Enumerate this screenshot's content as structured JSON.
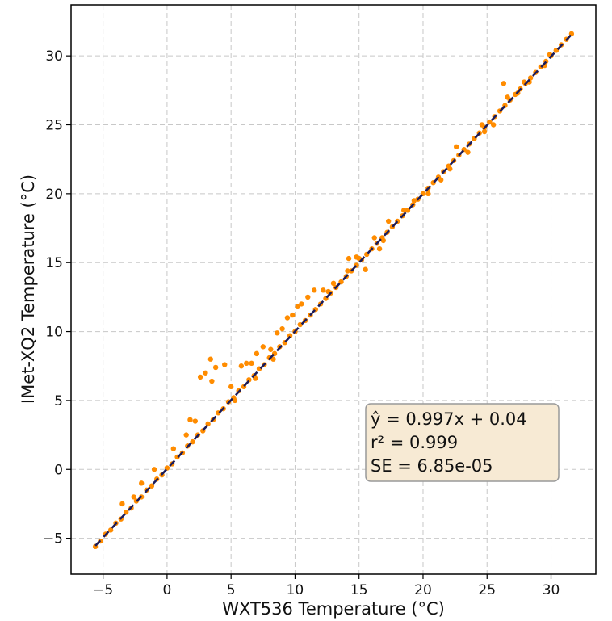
{
  "chart_data": {
    "type": "scatter",
    "title": "",
    "xlabel": "WXT536 Temperature (°C)",
    "ylabel": "IMet-XQ2 Temperature (°C)",
    "xlim": [
      -7.5,
      33.5
    ],
    "ylim": [
      -7.6,
      33.7
    ],
    "xticks": [
      -5,
      0,
      5,
      10,
      15,
      20,
      25,
      30
    ],
    "yticks": [
      -5,
      0,
      5,
      10,
      15,
      20,
      25,
      30
    ],
    "xtick_labels": [
      "−5",
      "0",
      "5",
      "10",
      "15",
      "20",
      "25",
      "30"
    ],
    "ytick_labels": [
      "−5",
      "0",
      "5",
      "10",
      "15",
      "20",
      "25",
      "30"
    ],
    "grid": true,
    "series": [
      {
        "kind": "points",
        "color": "#ff8c00",
        "x": [
          -5.6,
          -5.2,
          -4.8,
          -4.4,
          -4.0,
          -3.6,
          -3.2,
          -2.8,
          -2.4,
          -2.0,
          -1.6,
          -1.2,
          -0.8,
          -0.4,
          0.0,
          0.4,
          0.8,
          1.2,
          1.6,
          2.0,
          2.4,
          2.8,
          3.2,
          3.6,
          4.0,
          4.4,
          4.8,
          5.2,
          5.6,
          6.0,
          6.4,
          6.8,
          7.2,
          7.6,
          8.0,
          8.4,
          8.8,
          9.2,
          9.6,
          10.0,
          10.4,
          10.8,
          11.2,
          11.6,
          12.0,
          12.4,
          12.8,
          13.2,
          13.6,
          14.0,
          14.4,
          14.8,
          15.2,
          15.6,
          16.0,
          16.4,
          16.8,
          17.2,
          17.6,
          18.0,
          18.4,
          18.8,
          19.2,
          19.6,
          20.0,
          20.4,
          20.8,
          21.2,
          21.6,
          22.0,
          22.4,
          22.8,
          23.2,
          23.6,
          24.0,
          24.4,
          24.8,
          25.2,
          25.6,
          26.0,
          26.4,
          26.8,
          27.2,
          27.6,
          28.0,
          28.4,
          28.8,
          29.2,
          29.6,
          30.0,
          30.4,
          30.8,
          31.2,
          31.6,
          -3.5,
          -2.6,
          -2.0,
          -1.0,
          0.5,
          1.5,
          1.8,
          2.2,
          2.6,
          3.0,
          3.4,
          3.5,
          3.8,
          4.5,
          5.0,
          5.8,
          6.2,
          6.6,
          7.0,
          7.5,
          8.1,
          8.6,
          9.0,
          9.4,
          9.8,
          10.2,
          10.5,
          11.0,
          11.5,
          12.2,
          13.0,
          14.2,
          14.8,
          15.5,
          16.2,
          16.6,
          17.3,
          18.5,
          20.4,
          21.4,
          22.6,
          23.5,
          24.6,
          25.5,
          26.3,
          26.6,
          27.4,
          28.3,
          29.5,
          30.4,
          5.3,
          6.9,
          8.3,
          12.6,
          14.1,
          15.0,
          16.9,
          19.3,
          22.1,
          24.8,
          27.9,
          29.9
        ],
        "y": [
          -5.6,
          -5.2,
          -4.7,
          -4.4,
          -3.9,
          -3.6,
          -3.1,
          -2.8,
          -2.3,
          -2.0,
          -1.5,
          -1.2,
          -0.7,
          -0.4,
          0.1,
          0.4,
          0.9,
          1.2,
          1.7,
          2.0,
          2.5,
          2.8,
          3.3,
          3.6,
          4.1,
          4.4,
          4.9,
          5.2,
          5.7,
          6.0,
          6.5,
          6.8,
          7.3,
          7.6,
          8.1,
          8.4,
          8.9,
          9.2,
          9.7,
          10.0,
          10.5,
          10.8,
          11.2,
          11.6,
          12.0,
          12.4,
          12.8,
          13.2,
          13.6,
          14.0,
          14.4,
          14.8,
          15.2,
          15.6,
          16.0,
          16.4,
          16.8,
          17.2,
          17.6,
          18.0,
          18.4,
          18.8,
          19.2,
          19.6,
          20.0,
          20.4,
          20.8,
          21.2,
          21.6,
          22.0,
          22.4,
          22.8,
          23.2,
          23.6,
          24.0,
          24.4,
          24.8,
          25.2,
          25.6,
          26.0,
          26.4,
          26.8,
          27.2,
          27.6,
          28.0,
          28.4,
          28.8,
          29.2,
          29.6,
          30.0,
          30.4,
          30.8,
          31.2,
          31.6,
          -2.5,
          -2.0,
          -1.0,
          0.0,
          1.5,
          2.5,
          3.6,
          3.5,
          6.7,
          7.0,
          8.0,
          6.4,
          7.4,
          7.6,
          6.0,
          7.5,
          7.7,
          7.7,
          8.4,
          8.9,
          8.7,
          9.9,
          10.2,
          11.0,
          11.2,
          11.8,
          12.0,
          12.5,
          13.0,
          13.0,
          13.5,
          15.3,
          15.4,
          14.5,
          16.8,
          16.0,
          18.0,
          18.8,
          20.0,
          21.0,
          23.4,
          23.0,
          25.0,
          25.0,
          28.0,
          27.0,
          27.3,
          28.1,
          29.3,
          30.4,
          5.0,
          6.6,
          8.0,
          12.9,
          14.4,
          15.3,
          16.6,
          19.5,
          21.8,
          24.5,
          28.1,
          30.1
        ]
      },
      {
        "kind": "fit-line",
        "color": "#1c1c5a",
        "x": [
          -5.6,
          31.6
        ],
        "y": [
          -5.54,
          31.55
        ]
      }
    ],
    "annotation": {
      "lines": [
        "ŷ = 0.997x + 0.04",
        "r² = 0.999",
        "SE = 6.85e-05"
      ],
      "box_fill": "#f7ead4",
      "box_stroke": "#999999"
    },
    "legend": "none"
  }
}
